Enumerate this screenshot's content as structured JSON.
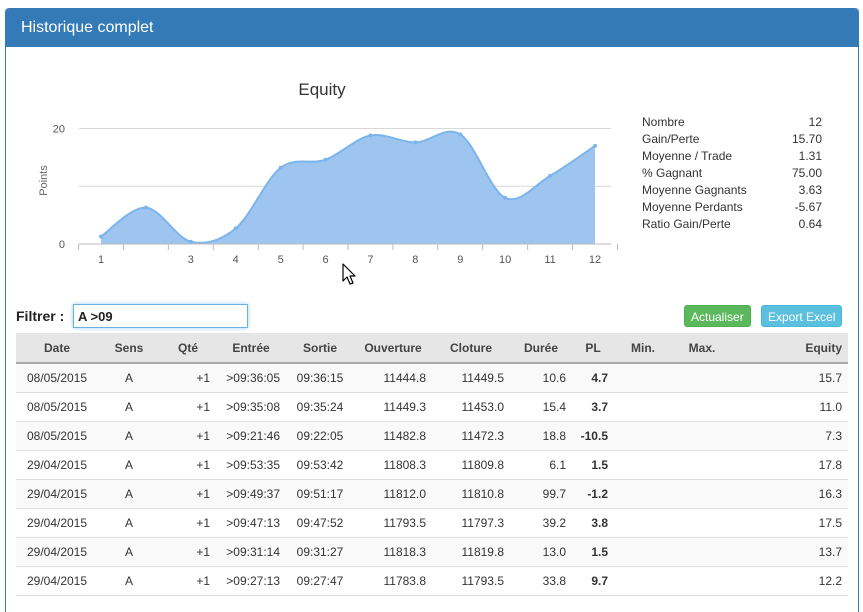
{
  "panel": {
    "title": "Historique complet"
  },
  "chart_data": {
    "type": "area",
    "title": "Equity",
    "ylabel": "Points",
    "xlabel": "",
    "x": [
      1,
      2,
      3,
      4,
      5,
      6,
      7,
      8,
      9,
      10,
      11,
      12
    ],
    "x_tick_labels": [
      "1",
      "",
      "3",
      "4",
      "5",
      "6",
      "7",
      "8",
      "9",
      "10",
      "11",
      "12"
    ],
    "values": [
      1.3,
      6.3,
      0.4,
      2.7,
      13.2,
      14.6,
      18.8,
      17.6,
      19.0,
      8.0,
      11.8,
      17.0
    ],
    "y_ticks": [
      0,
      20
    ],
    "ylim": [
      0,
      22
    ],
    "grid": true,
    "fill_color": "#9ec5ef",
    "line_color": "#7cb5ec"
  },
  "stats": [
    {
      "label": "Nombre",
      "value": "12"
    },
    {
      "label": "Gain/Perte",
      "value": "15.70"
    },
    {
      "label": "Moyenne / Trade",
      "value": "1.31"
    },
    {
      "label": "% Gagnant",
      "value": "75.00"
    },
    {
      "label": "Moyenne Gagnants",
      "value": "3.63"
    },
    {
      "label": "Moyenne Perdants",
      "value": "-5.67"
    },
    {
      "label": "Ratio Gain/Perte",
      "value": "0.64"
    }
  ],
  "filter": {
    "label": "Filtrer :",
    "value": "A >09"
  },
  "buttons": {
    "refresh": "Actualiser",
    "export": "Export Excel"
  },
  "table": {
    "headers": [
      "Date",
      "Sens",
      "Qté",
      "Entrée",
      "Sortie",
      "Ouverture",
      "Cloture",
      "Durée",
      "PL",
      "Min.",
      "Max.",
      "Equity"
    ],
    "rows": [
      [
        "08/05/2015",
        "A",
        "+1",
        ">09:36:05",
        "09:36:15",
        "11444.8",
        "11449.5",
        "10.6",
        "4.7",
        "",
        "",
        "15.7"
      ],
      [
        "08/05/2015",
        "A",
        "+1",
        ">09:35:08",
        "09:35:24",
        "11449.3",
        "11453.0",
        "15.4",
        "3.7",
        "",
        "",
        "11.0"
      ],
      [
        "08/05/2015",
        "A",
        "+1",
        ">09:21:46",
        "09:22:05",
        "11482.8",
        "11472.3",
        "18.8",
        "-10.5",
        "",
        "",
        "7.3"
      ],
      [
        "29/04/2015",
        "A",
        "+1",
        ">09:53:35",
        "09:53:42",
        "11808.3",
        "11809.8",
        "6.1",
        "1.5",
        "",
        "",
        "17.8"
      ],
      [
        "29/04/2015",
        "A",
        "+1",
        ">09:49:37",
        "09:51:17",
        "11812.0",
        "11810.8",
        "99.7",
        "-1.2",
        "",
        "",
        "16.3"
      ],
      [
        "29/04/2015",
        "A",
        "+1",
        ">09:47:13",
        "09:47:52",
        "11793.5",
        "11797.3",
        "39.2",
        "3.8",
        "",
        "",
        "17.5"
      ],
      [
        "29/04/2015",
        "A",
        "+1",
        ">09:31:14",
        "09:31:27",
        "11818.3",
        "11819.8",
        "13.0",
        "1.5",
        "",
        "",
        "13.7"
      ],
      [
        "29/04/2015",
        "A",
        "+1",
        ">09:27:13",
        "09:27:47",
        "11783.8",
        "11793.5",
        "33.8",
        "9.7",
        "",
        "",
        "12.2"
      ]
    ]
  }
}
